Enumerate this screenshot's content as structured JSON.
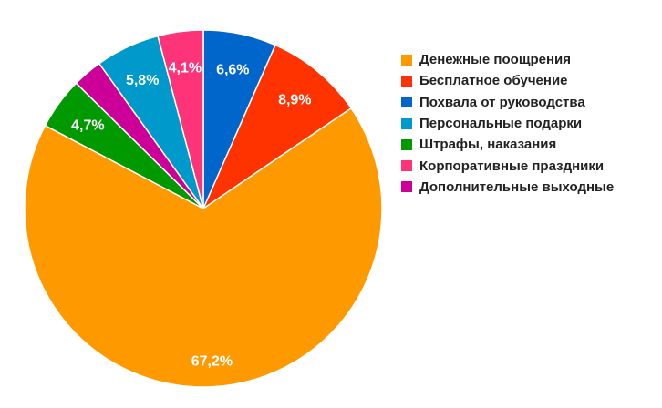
{
  "chart_data": {
    "type": "pie",
    "title": "",
    "start_angle_deg": 0,
    "direction": "clockwise",
    "legend_position": "right",
    "slices": [
      {
        "label": "Денежные поощрения",
        "value": 67.2,
        "display": "67,2%",
        "color": "#FF9900",
        "show_label": true
      },
      {
        "label": "Бесплатное обучение",
        "value": 8.9,
        "display": "8,9%",
        "color": "#FF3300",
        "show_label": true
      },
      {
        "label": "Похвала от руководства",
        "value": 6.6,
        "display": "6,6%",
        "color": "#0066CC",
        "show_label": true
      },
      {
        "label": "Персональные подарки",
        "value": 5.8,
        "display": "5,8%",
        "color": "#0099CC",
        "show_label": true
      },
      {
        "label": "Штрафы, наказания",
        "value": 4.7,
        "display": "4,7%",
        "color": "#009900",
        "show_label": true
      },
      {
        "label": "Корпоративные праздники",
        "value": 4.1,
        "display": "4,1%",
        "color": "#FF3377",
        "show_label": true
      },
      {
        "label": "Дополнительные выходные",
        "value": 2.7,
        "display": "",
        "color": "#CC0099",
        "show_label": false
      }
    ],
    "legend": [
      "Денежные поощрения",
      "Бесплатное обучение",
      "Похвала от руководства",
      "Персональные подарки",
      "Штрафы, наказания",
      "Корпоративные праздники",
      "Дополнительные выходные"
    ]
  }
}
